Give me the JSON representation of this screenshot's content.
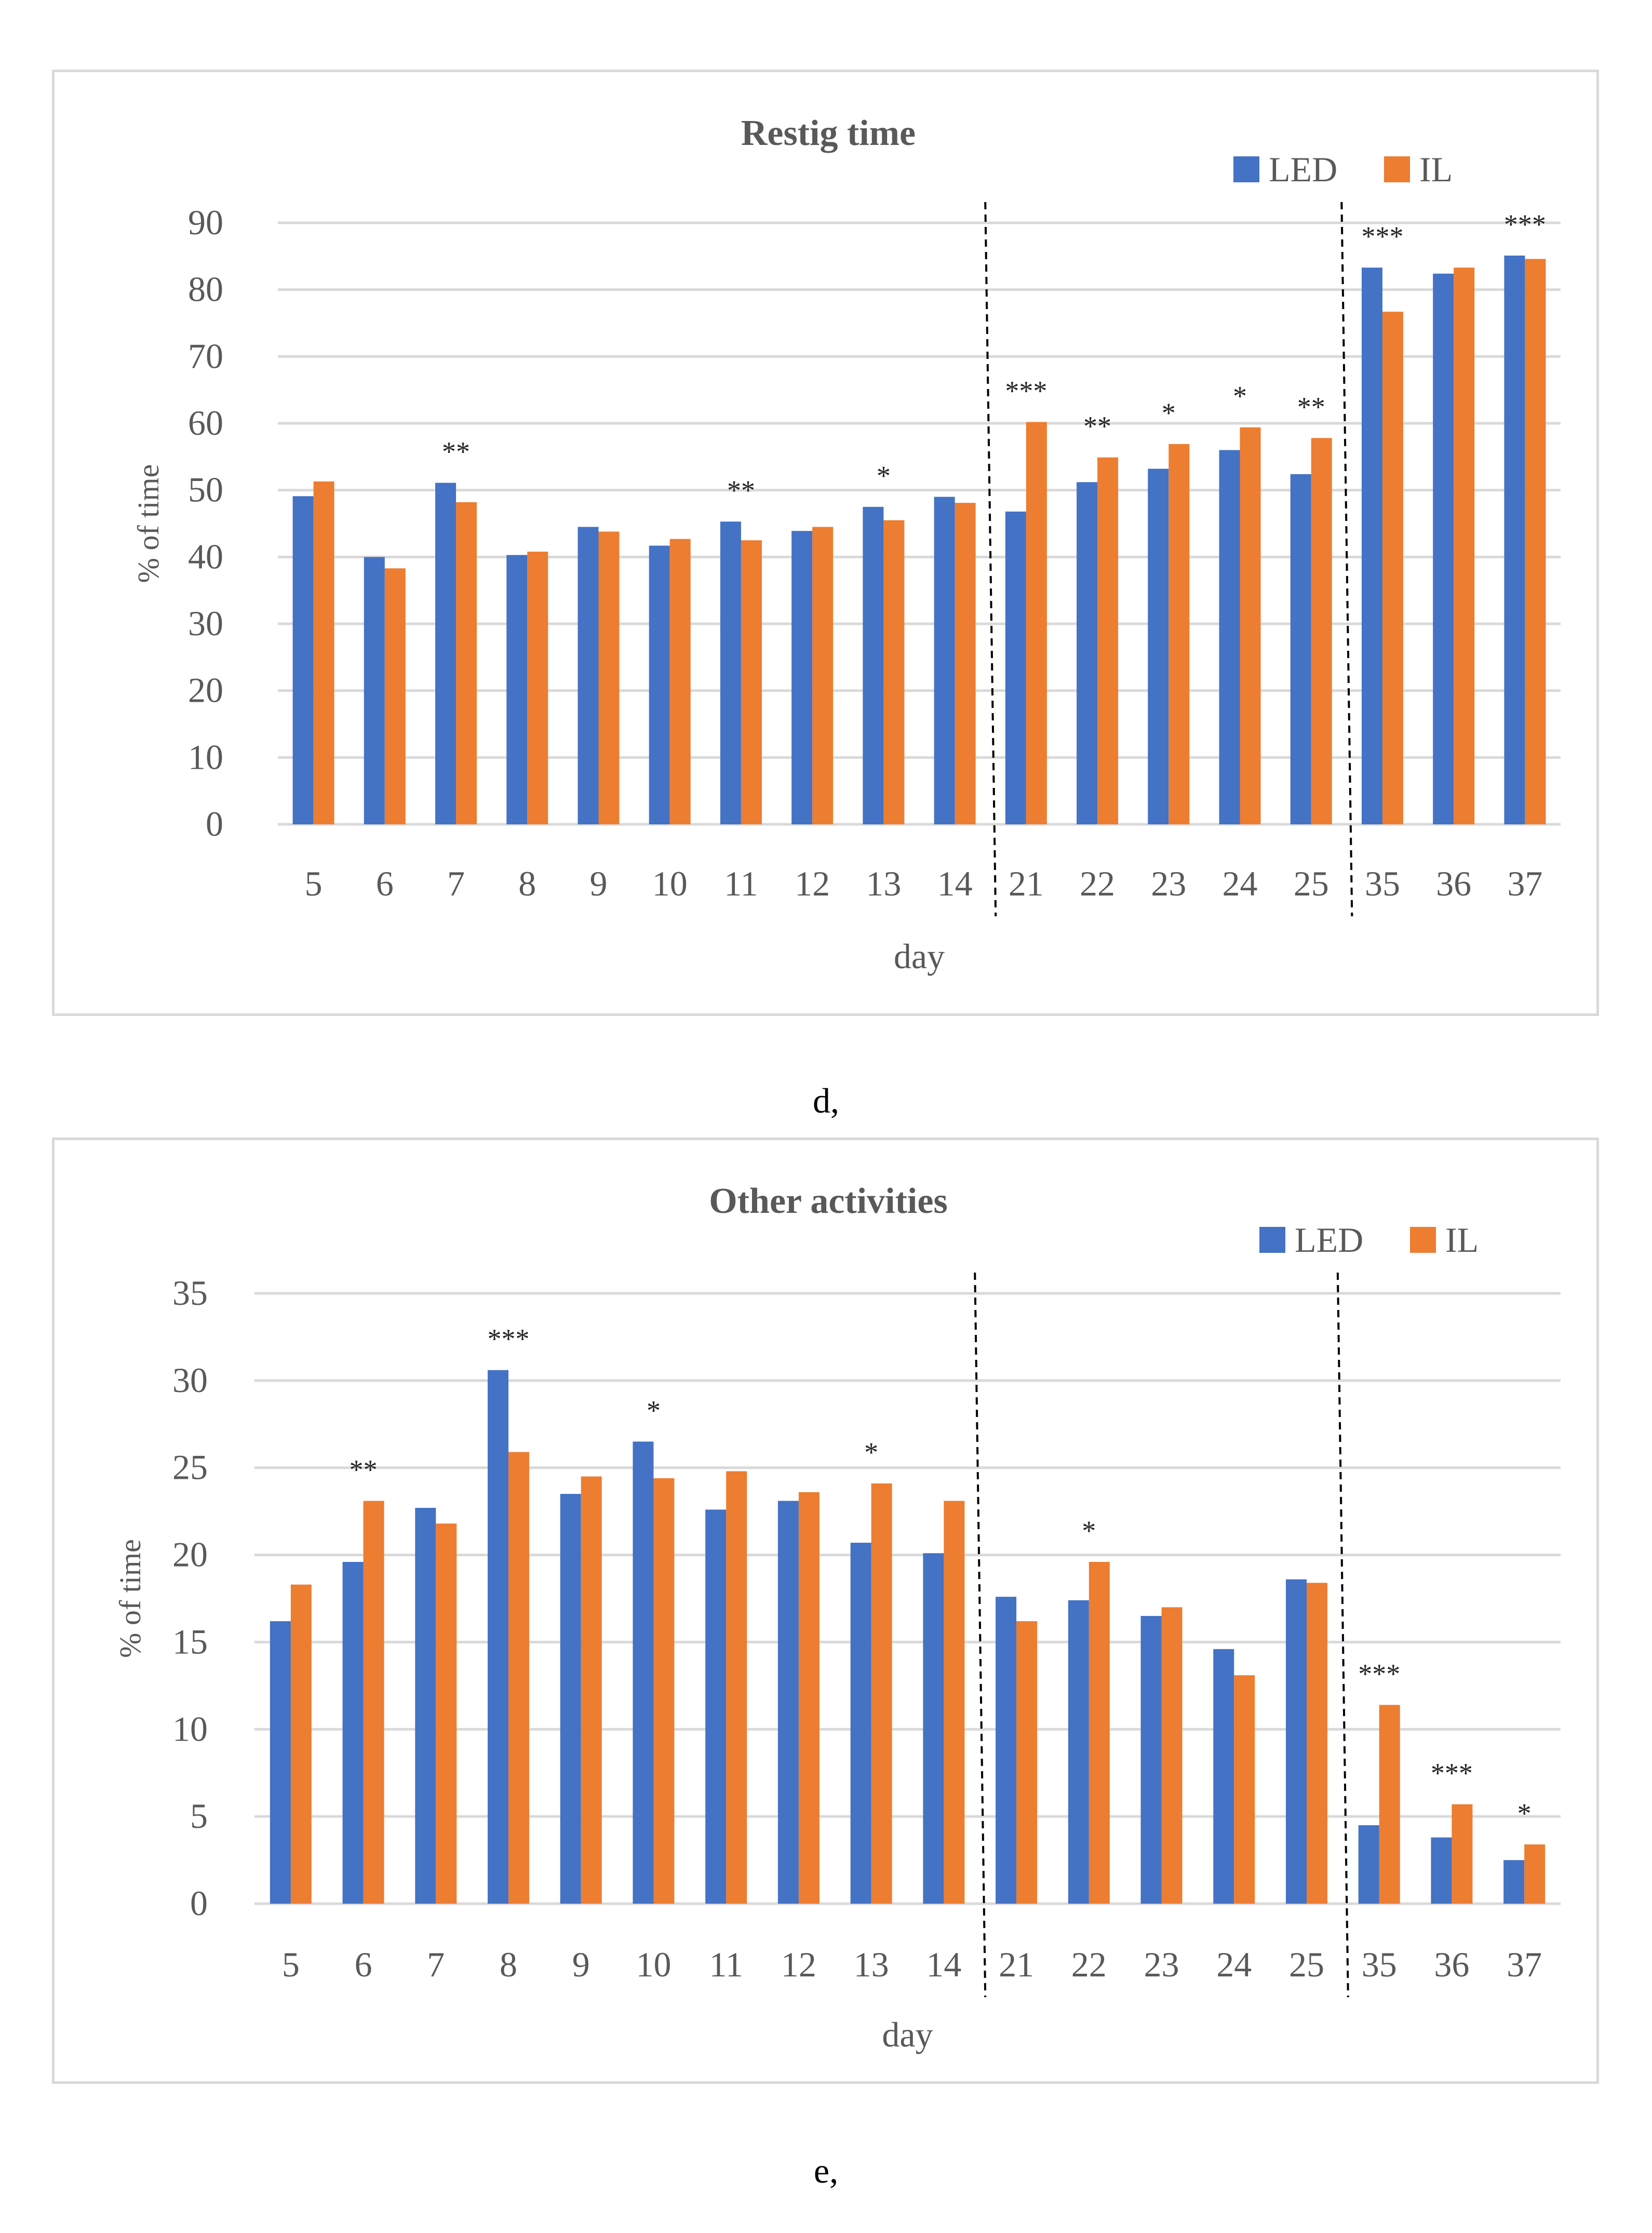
{
  "captions": [
    "d,",
    "e,"
  ],
  "chart_data": [
    {
      "type": "bar",
      "title": "Restig time",
      "xlabel": "day",
      "ylabel": "% of time",
      "ylim": [
        0,
        90
      ],
      "yticks": [
        0,
        10,
        20,
        30,
        40,
        50,
        60,
        70,
        80,
        90
      ],
      "grid": true,
      "legend": "top-right",
      "categories": [
        "5",
        "6",
        "7",
        "8",
        "9",
        "10",
        "11",
        "12",
        "13",
        "14",
        "21",
        "22",
        "23",
        "24",
        "25",
        "35",
        "36",
        "37"
      ],
      "series": [
        {
          "name": "LED",
          "color": "#4472c4",
          "values": [
            49.1,
            40.0,
            51.1,
            40.3,
            44.5,
            41.7,
            45.3,
            43.9,
            47.5,
            49.0,
            46.8,
            51.2,
            53.2,
            56.0,
            52.4,
            83.3,
            82.4,
            85.1
          ]
        },
        {
          "name": "IL",
          "color": "#ed7d31",
          "values": [
            51.3,
            38.3,
            48.2,
            40.8,
            43.8,
            42.7,
            42.5,
            44.5,
            45.5,
            48.1,
            60.2,
            54.9,
            56.9,
            59.4,
            57.8,
            76.7,
            83.3,
            84.6
          ]
        }
      ],
      "significance": [
        "",
        "",
        "**",
        "",
        "",
        "",
        "**",
        "",
        "*",
        "",
        "***",
        "**",
        "*",
        "*",
        "**",
        "***",
        "",
        "***"
      ],
      "dividers_after": [
        "14",
        "25"
      ]
    },
    {
      "type": "bar",
      "title": "Other activities",
      "xlabel": "day",
      "ylabel": "% of time",
      "ylim": [
        0,
        35
      ],
      "yticks": [
        0,
        5,
        10,
        15,
        20,
        25,
        30,
        35
      ],
      "grid": true,
      "legend": "top-right",
      "categories": [
        "5",
        "6",
        "7",
        "8",
        "9",
        "10",
        "11",
        "12",
        "13",
        "14",
        "21",
        "22",
        "23",
        "24",
        "25",
        "35",
        "36",
        "37"
      ],
      "series": [
        {
          "name": "LED",
          "color": "#4472c4",
          "values": [
            16.2,
            19.6,
            22.7,
            30.6,
            23.5,
            26.5,
            22.6,
            23.1,
            20.7,
            20.1,
            17.6,
            17.4,
            16.5,
            14.6,
            18.6,
            4.5,
            3.8,
            2.5
          ]
        },
        {
          "name": "IL",
          "color": "#ed7d31",
          "values": [
            18.3,
            23.1,
            21.8,
            25.9,
            24.5,
            24.4,
            24.8,
            23.6,
            24.1,
            23.1,
            16.2,
            19.6,
            17.0,
            13.1,
            18.4,
            11.4,
            5.7,
            3.4
          ]
        }
      ],
      "significance": [
        "",
        "**",
        "",
        "***",
        "",
        "*",
        "",
        "",
        "*",
        "",
        "",
        "*",
        "",
        "",
        "",
        "***",
        "***",
        "*"
      ],
      "dividers_after": [
        "14",
        "25"
      ]
    }
  ]
}
